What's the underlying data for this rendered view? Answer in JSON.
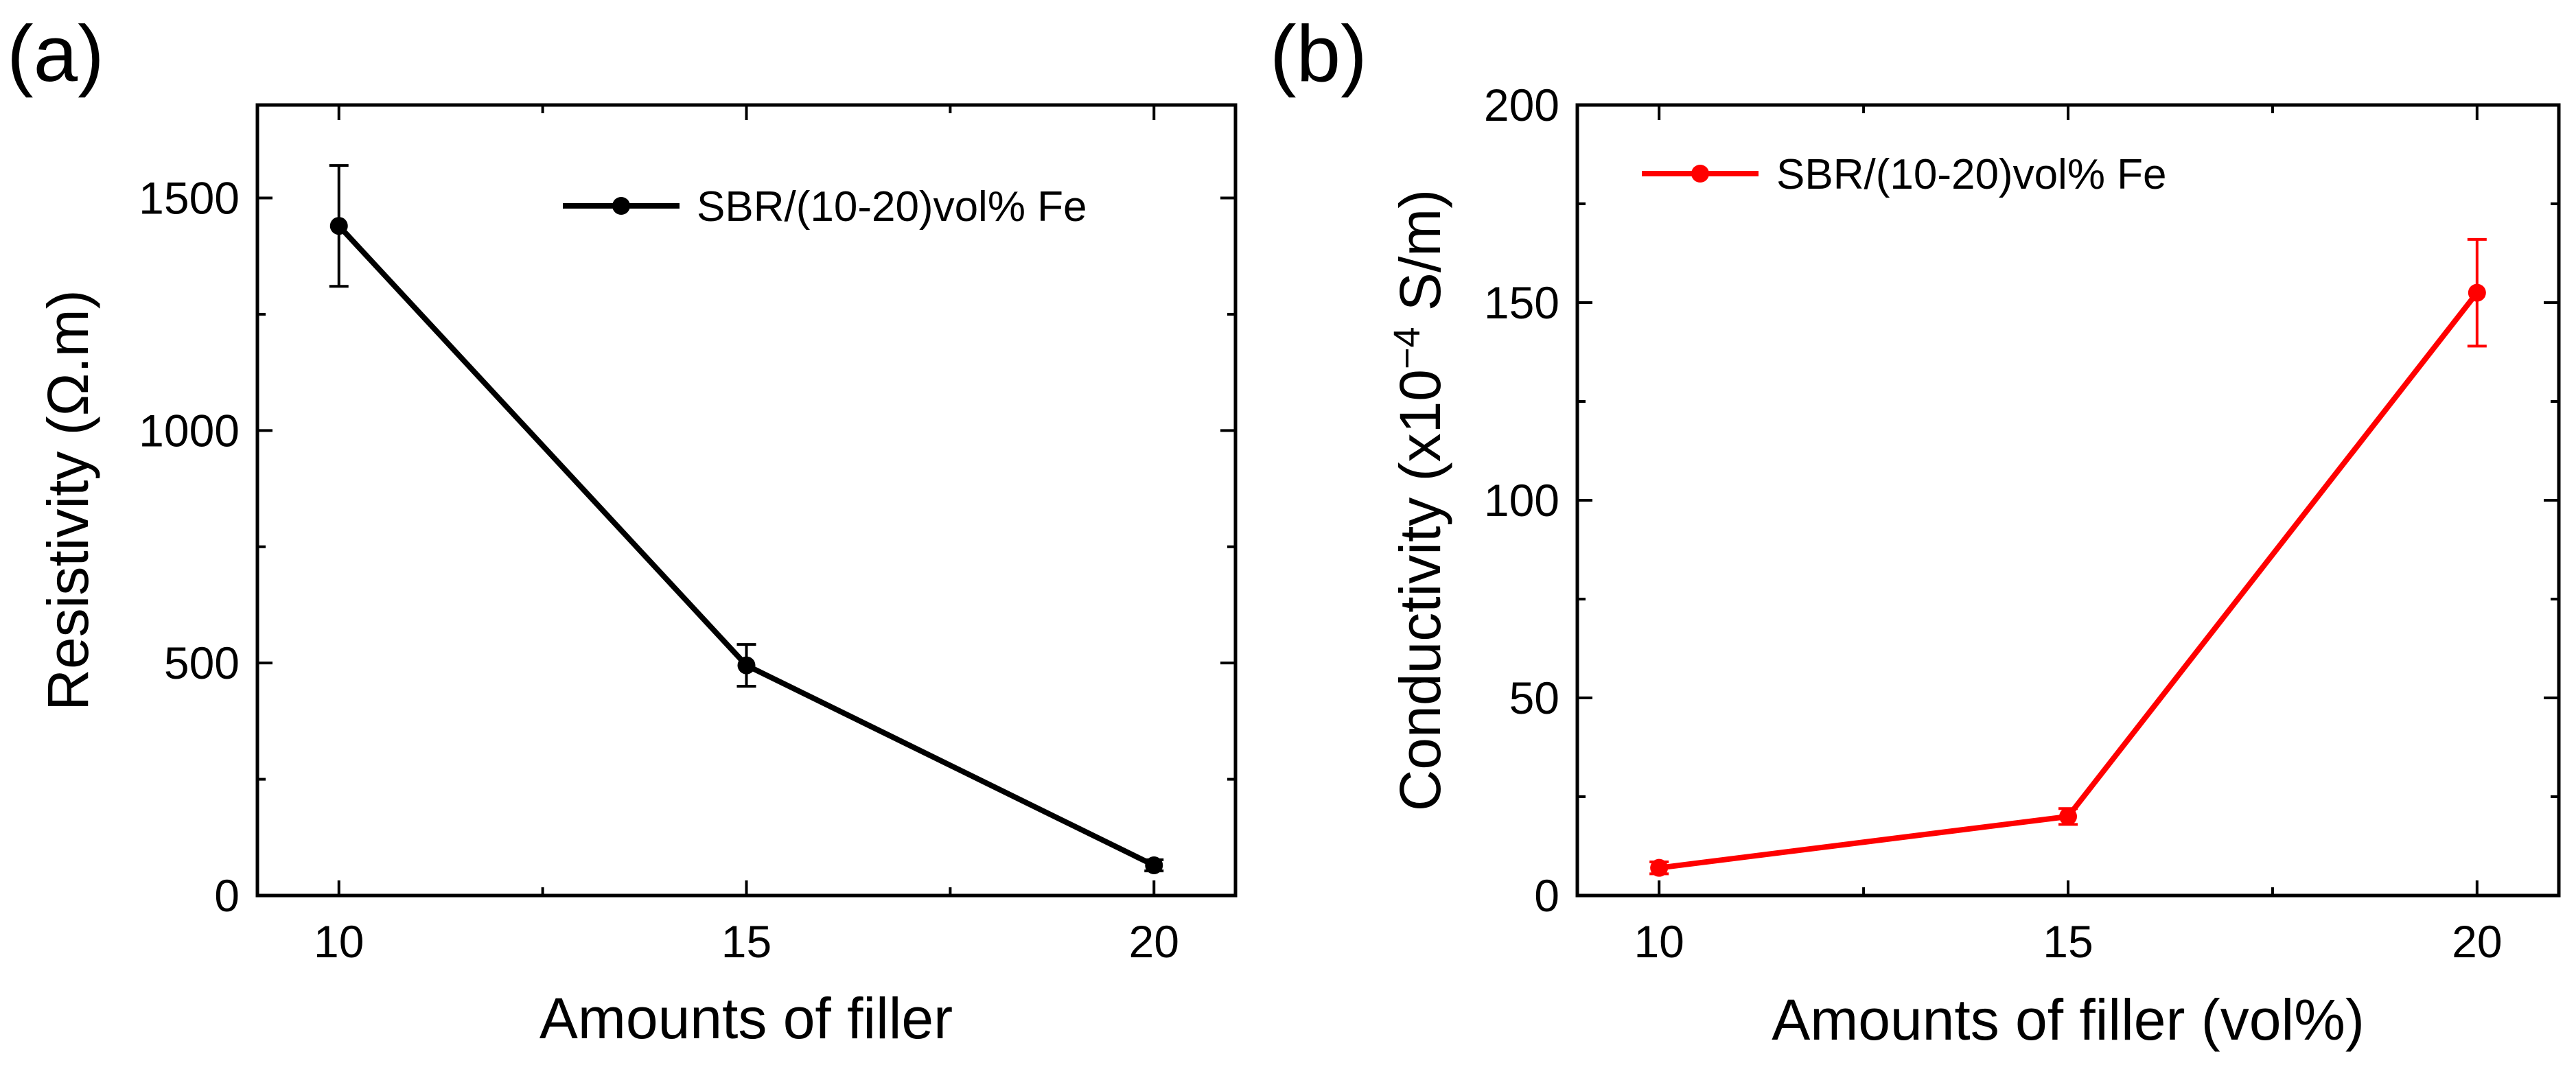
{
  "chart_data": [
    {
      "panel_label": "(a)",
      "type": "line",
      "xlabel": "Amounts of filler",
      "ylabel": "Resistivity (Ω.m)",
      "xlim": [
        9,
        21
      ],
      "ylim": [
        0,
        1700
      ],
      "xticks": [
        10,
        15,
        20
      ],
      "xtick_labels": [
        "10",
        "15",
        "20"
      ],
      "xminor": [
        12.5,
        17.5
      ],
      "yticks": [
        0,
        500,
        1000,
        1500
      ],
      "ytick_labels": [
        "0",
        "500",
        "1000",
        "1500"
      ],
      "yminor": [
        250,
        750,
        1250
      ],
      "legend_position": "top-right",
      "series": [
        {
          "name": "SBR/(10-20)vol% Fe",
          "color": "#000000",
          "x": [
            10,
            15,
            20
          ],
          "y": [
            1440,
            495,
            65
          ],
          "err": [
            130,
            45,
            12
          ]
        }
      ]
    },
    {
      "panel_label": "(b)",
      "type": "line",
      "xlabel": "Amounts of filler (vol%)",
      "ylabel_main": "Conductivity (x10",
      "ylabel_sup": "−4",
      "ylabel_tail": " S/m)",
      "xlim": [
        9,
        21
      ],
      "ylim": [
        0,
        200
      ],
      "xticks": [
        10,
        15,
        20
      ],
      "xtick_labels": [
        "10",
        "15",
        "20"
      ],
      "xminor": [
        12.5,
        17.5
      ],
      "yticks": [
        0,
        50,
        100,
        150,
        200
      ],
      "ytick_labels": [
        "0",
        "50",
        "100",
        "150",
        "200"
      ],
      "yminor": [
        25,
        75,
        125,
        175
      ],
      "legend_position": "top-left",
      "series": [
        {
          "name": "SBR/(10-20)vol% Fe",
          "color": "#ff0000",
          "x": [
            10,
            15,
            20
          ],
          "y": [
            7,
            20,
            152.5
          ],
          "err": [
            1.5,
            2,
            13.5
          ]
        }
      ]
    }
  ]
}
